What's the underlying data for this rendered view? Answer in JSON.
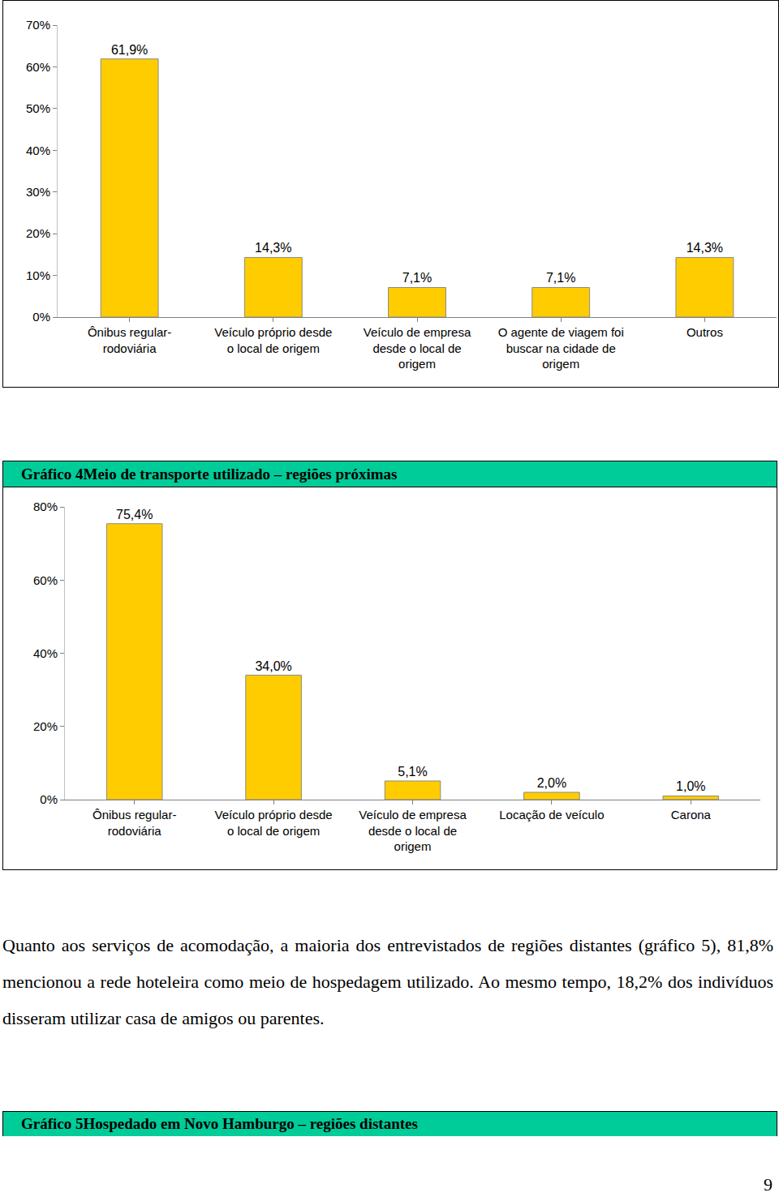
{
  "chart_data": [
    {
      "type": "bar",
      "categories": [
        "Ônibus regular-rodoviária",
        "Veículo próprio desde o local de origem",
        "Veículo de empresa desde o local de origem",
        "O agente de viagem foi buscar na cidade de origem",
        "Outros"
      ],
      "values": [
        61.9,
        14.3,
        7.1,
        7.1,
        14.3
      ],
      "value_labels": [
        "61,9%",
        "14,3%",
        "7,1%",
        "7,1%",
        "14,3%"
      ],
      "color": "#ffcc00",
      "ylim": [
        0,
        70
      ],
      "yticks": [
        {
          "value": 0,
          "label": "0%"
        },
        {
          "value": 10,
          "label": "10%"
        },
        {
          "value": 20,
          "label": "20%"
        },
        {
          "value": 30,
          "label": "30%"
        },
        {
          "value": 40,
          "label": "40%"
        },
        {
          "value": 50,
          "label": "50%"
        },
        {
          "value": 60,
          "label": "60%"
        },
        {
          "value": 70,
          "label": "70%"
        }
      ],
      "grid": false,
      "data_labels": true
    },
    {
      "type": "bar",
      "title": "Gráfico 4Meio de transporte utilizado – regiões próximas",
      "categories": [
        "Ônibus regular-rodoviária",
        "Veículo próprio desde o local de origem",
        "Veículo de empresa desde o local de origem",
        "Locação de veículo",
        "Carona"
      ],
      "values": [
        75.4,
        34.0,
        5.1,
        2.0,
        1.0
      ],
      "value_labels": [
        "75,4%",
        "34,0%",
        "5,1%",
        "2,0%",
        "1,0%"
      ],
      "color": "#ffcc00",
      "ylim": [
        0,
        80
      ],
      "yticks": [
        {
          "value": 0,
          "label": "0%"
        },
        {
          "value": 20,
          "label": "20%"
        },
        {
          "value": 40,
          "label": "40%"
        },
        {
          "value": 60,
          "label": "60%"
        },
        {
          "value": 80,
          "label": "80%"
        }
      ],
      "grid": false,
      "data_labels": true
    }
  ],
  "paragraph": "Quanto aos serviços de acomodação, a maioria dos entrevistados de regiões distantes (gráfico 5), 81,8% mencionou a rede hoteleira como meio de hospedagem utilizado. Ao mesmo tempo, 18,2% dos indivíduos disseram utilizar casa de amigos ou parentes.",
  "caption": "Gráfico 5Hospedado em Novo Hamburgo – regiões distantes",
  "page_number": "9"
}
